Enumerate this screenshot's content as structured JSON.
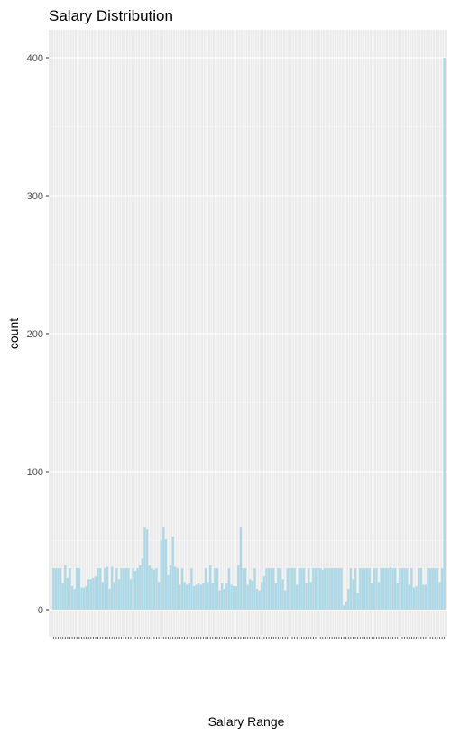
{
  "chart_data": {
    "type": "bar",
    "title": "Salary Distribution",
    "xlabel": "Salary Range",
    "ylabel": "count",
    "ylim": [
      0,
      400
    ],
    "yticks": [
      0,
      100,
      200,
      300,
      400
    ],
    "grid": true,
    "legend": "none",
    "colors": {
      "bar": "#add8e6",
      "panel": "#ebebeb",
      "grid_major": "#ffffff",
      "grid_minor": "#f5f5f5",
      "tick_text": "#4d4d4d"
    },
    "values": [
      30,
      30,
      30,
      30,
      19,
      32,
      23,
      30,
      17,
      15,
      30,
      30,
      16,
      16,
      17,
      22,
      22,
      23,
      24,
      30,
      30,
      20,
      30,
      31,
      15,
      31,
      20,
      30,
      22,
      30,
      30,
      30,
      30,
      22,
      30,
      28,
      30,
      32,
      37,
      60,
      58,
      32,
      30,
      29,
      30,
      20,
      50,
      60,
      51,
      25,
      32,
      53,
      31,
      30,
      18,
      30,
      20,
      18,
      19,
      30,
      17,
      18,
      19,
      18,
      19,
      30,
      20,
      32,
      19,
      30,
      30,
      14,
      19,
      15,
      19,
      30,
      18,
      17,
      17,
      32,
      60,
      30,
      30,
      18,
      22,
      21,
      30,
      15,
      14,
      20,
      24,
      30,
      30,
      30,
      30,
      19,
      30,
      30,
      22,
      14,
      30,
      30,
      30,
      30,
      18,
      30,
      30,
      30,
      19,
      30,
      20,
      30,
      30,
      30,
      30,
      29,
      30,
      30,
      30,
      30,
      30,
      30,
      30,
      30,
      3,
      6,
      15,
      30,
      22,
      30,
      12,
      30,
      30,
      30,
      30,
      30,
      19,
      30,
      30,
      20,
      30,
      30,
      30,
      30,
      31,
      30,
      30,
      19,
      30,
      30,
      30,
      30,
      18,
      30,
      16,
      17,
      30,
      30,
      18,
      18,
      30,
      30,
      30,
      30,
      30,
      20,
      30,
      400
    ]
  }
}
